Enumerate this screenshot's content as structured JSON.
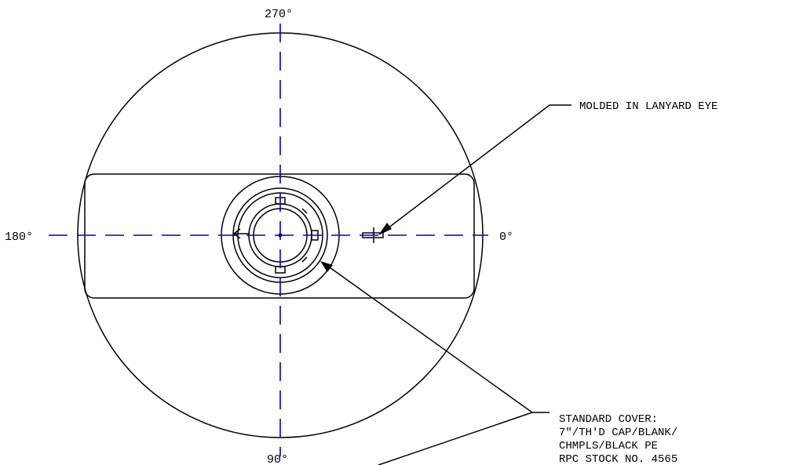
{
  "angles": {
    "top": "270°",
    "left": "180°",
    "right": "0°",
    "bottom": "90°"
  },
  "callouts": {
    "lanyard": "MOLDED IN LANYARD EYE",
    "cover_lines": [
      "STANDARD COVER:",
      "7\"/TH'D CAP/BLANK/",
      "CHMPLS/BLACK PE",
      "RPC STOCK NO. 4565"
    ]
  },
  "colors": {
    "outline": "#000000",
    "centerline": "#0000cc",
    "background": "#ffffff"
  }
}
